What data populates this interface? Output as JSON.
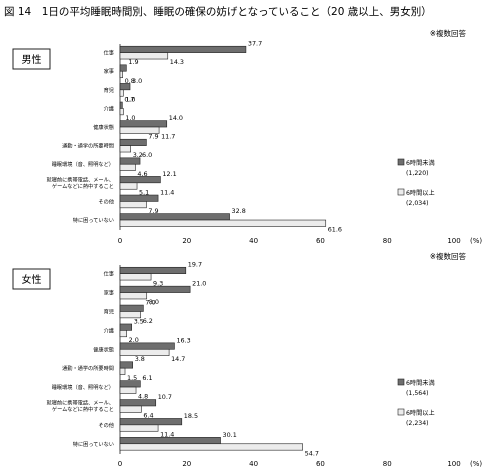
{
  "title": "図 14　1日の平均睡眠時間別、睡眠の確保の妨げとなっていること（20 歳以上、男女別）",
  "colors": {
    "under6": "#6e6e6e",
    "over6": "#ececec",
    "stroke": "#222222"
  },
  "chart_data": [
    {
      "type": "bar",
      "orientation": "horizontal",
      "panel_label": "男性",
      "note": "※複数回答",
      "unit": "(%)",
      "xlim": [
        0,
        100
      ],
      "xticks": [
        "0",
        "20",
        "40",
        "60",
        "80",
        "100"
      ],
      "categories": [
        "仕事",
        "家事",
        "育児",
        "介護",
        "健康状態",
        "通勤・通学の所要時間",
        "睡眠環境（音、照明など）",
        "就寝前に携帯電話、メール、|ゲームなどに熱中すること",
        "その他",
        "特に困っていない"
      ],
      "series": [
        {
          "name": "6時間未満",
          "n": "(1,220)",
          "values": [
            37.7,
            1.9,
            3.0,
            0.7,
            14.0,
            7.9,
            6.0,
            12.1,
            11.4,
            32.8
          ]
        },
        {
          "name": "6時間以上",
          "n": "(2,034)",
          "values": [
            14.3,
            0.8,
            1.0,
            1.0,
            11.7,
            3.2,
            4.6,
            5.1,
            7.9,
            61.6
          ]
        }
      ]
    },
    {
      "type": "bar",
      "orientation": "horizontal",
      "panel_label": "女性",
      "note": "※複数回答",
      "unit": "(%)",
      "xlim": [
        0,
        100
      ],
      "xticks": [
        "0",
        "20",
        "40",
        "60",
        "80",
        "100"
      ],
      "categories": [
        "仕事",
        "家事",
        "育児",
        "介護",
        "健康状態",
        "通勤・通学の所要時間",
        "睡眠環境（音、照明など）",
        "就寝前に携帯電話、メール、|ゲームなどに熱中すること",
        "その他",
        "特に困っていない"
      ],
      "series": [
        {
          "name": "6時間未満",
          "n": "(1,564)",
          "values": [
            19.7,
            21.0,
            7.0,
            3.5,
            16.3,
            3.8,
            6.1,
            10.7,
            18.5,
            30.1
          ]
        },
        {
          "name": "6時間以上",
          "n": "(2,234)",
          "values": [
            9.3,
            8.0,
            6.2,
            2.0,
            14.7,
            1.5,
            4.8,
            6.4,
            11.4,
            54.7
          ]
        }
      ]
    }
  ]
}
